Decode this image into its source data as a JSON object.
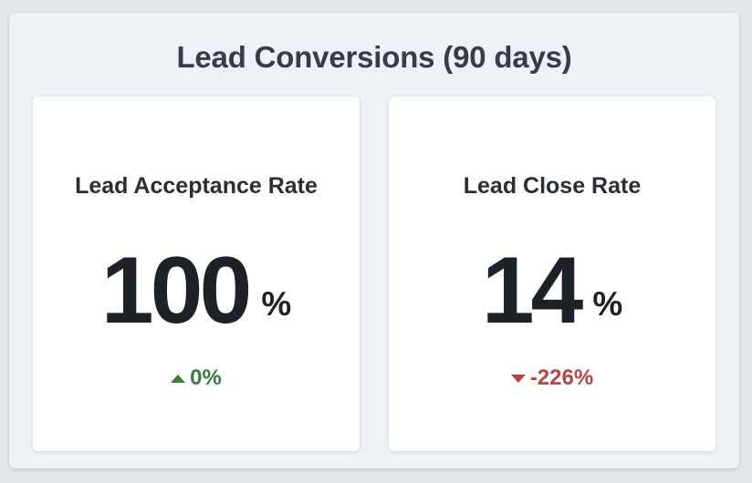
{
  "panel": {
    "title": "Lead Conversions (90 days)"
  },
  "cards": [
    {
      "title": "Lead Acceptance Rate",
      "value": "100",
      "unit": "%",
      "change": "0%",
      "trend": "up",
      "trend_icon": "triangle-up-icon",
      "trend_color": "#3d7a3b"
    },
    {
      "title": "Lead Close Rate",
      "value": "14",
      "unit": "%",
      "change": "-226%",
      "trend": "down",
      "trend_icon": "triangle-down-icon",
      "trend_color": "#b34646"
    }
  ]
}
